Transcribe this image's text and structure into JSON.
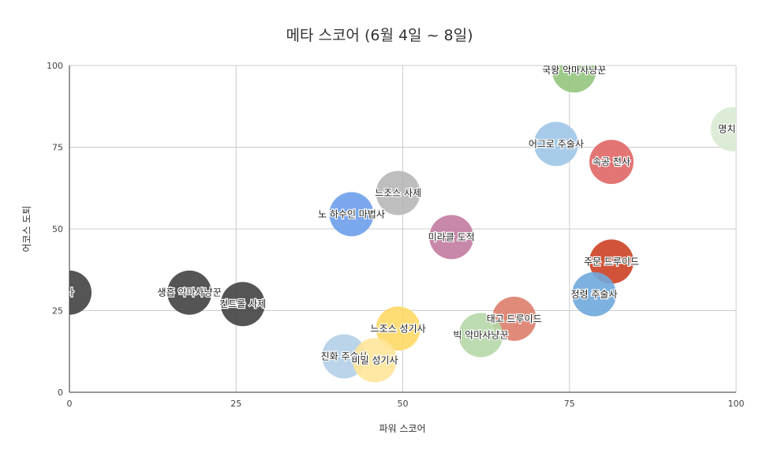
{
  "chart_data": {
    "type": "scatter",
    "title": "메타 스코어 (6월 4일 ~ 8일)",
    "xlabel": "파워 스코어",
    "ylabel": "어코스 도퇴",
    "xlim": [
      0,
      100
    ],
    "ylim": [
      0,
      100
    ],
    "x_ticks": [
      "0",
      "25",
      "50",
      "75",
      "100"
    ],
    "y_ticks": [
      "0",
      "25",
      "50",
      "75",
      "100"
    ],
    "grid": true,
    "legend": "none",
    "points": [
      {
        "label": "국왕 악마사냥꾼",
        "x": 75.7,
        "y": 98.5,
        "color": "#93c47d"
      },
      {
        "label": "명치 사",
        "x": 99.5,
        "y": 80.5,
        "color": "#d9ead3"
      },
      {
        "label": "어그로 주술사",
        "x": 73.0,
        "y": 76.0,
        "color": "#9fc5e8"
      },
      {
        "label": "속공 전사",
        "x": 81.3,
        "y": 70.5,
        "color": "#e06666"
      },
      {
        "label": "느조스 사제",
        "x": 49.3,
        "y": 61.0,
        "color": "#b7b7b7"
      },
      {
        "label": "노 하수인 마법사",
        "x": 42.3,
        "y": 54.5,
        "color": "#6d9eeb"
      },
      {
        "label": "미라클 도적",
        "x": 57.3,
        "y": 47.5,
        "color": "#c27ba0"
      },
      {
        "label": "주문 드루이드",
        "x": 81.3,
        "y": 40.0,
        "color": "#cc4125"
      },
      {
        "label": "정령 주술사",
        "x": 78.7,
        "y": 30.0,
        "color": "#6fa8dc"
      },
      {
        "label": "사",
        "x": 0.0,
        "y": 30.5,
        "color": "#434343"
      },
      {
        "label": "생흡 악마사냥꾼",
        "x": 18.0,
        "y": 30.5,
        "color": "#434343"
      },
      {
        "label": "컨트롤 사제",
        "x": 26.0,
        "y": 27.0,
        "color": "#434343"
      },
      {
        "label": "태고 드루이드",
        "x": 66.7,
        "y": 22.5,
        "color": "#dd7e6b"
      },
      {
        "label": "느조스 성기사",
        "x": 49.3,
        "y": 19.5,
        "color": "#ffd966"
      },
      {
        "label": "빅 악마사냥꾼",
        "x": 61.7,
        "y": 17.5,
        "color": "#b6d7a8"
      },
      {
        "label": "진화 주술사",
        "x": 41.2,
        "y": 11.0,
        "color": "#b4cfe8"
      },
      {
        "label": "비밀 성기사",
        "x": 45.8,
        "y": 9.8,
        "color": "#ffe599"
      }
    ]
  }
}
